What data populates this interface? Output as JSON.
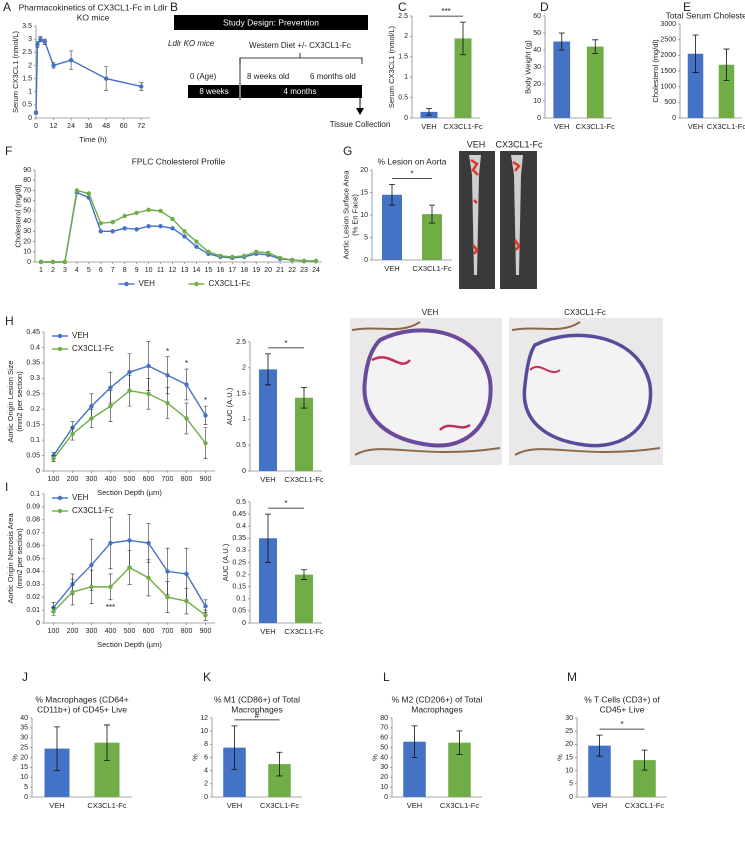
{
  "chart_data": [
    {
      "panel": "A",
      "type": "line",
      "title": [
        "Pharmacokinetics of CX3CL1-Fc in Ldlr",
        "KO mice"
      ],
      "xlabel": "Time (h)",
      "ylabel": "Serum CX3CL1 (nmol/L)",
      "x": [
        0,
        1,
        3,
        6,
        12,
        24,
        48,
        72
      ],
      "xlim": [
        0,
        78
      ],
      "xticks": [
        0,
        12,
        24,
        36,
        48,
        60,
        72
      ],
      "ylim": [
        0,
        3.5
      ],
      "yticks": [
        0,
        0.5,
        1,
        1.5,
        2,
        2.5,
        3,
        3.5
      ],
      "series": [
        {
          "name": null,
          "color": "#4472c4",
          "values": [
            0.2,
            2.8,
            3.0,
            2.9,
            2.0,
            2.2,
            1.5,
            1.2
          ],
          "errors": [
            0.05,
            0.1,
            0.1,
            0.1,
            0.1,
            0.35,
            0.45,
            0.15
          ]
        }
      ]
    },
    {
      "panel": "C",
      "type": "bar",
      "ylabel": "Serum CX3CL1 (nmol/L)",
      "categories": [
        "VEH",
        "CX3CL1-Fc"
      ],
      "colors": [
        "#4472c4",
        "#70ad47"
      ],
      "values": [
        0.15,
        1.95
      ],
      "errors": [
        0.08,
        0.4
      ],
      "ylim": [
        0,
        2.5
      ],
      "yticks": [
        0,
        0.5,
        1,
        1.5,
        2,
        2.5
      ],
      "significance": "***"
    },
    {
      "panel": "D",
      "type": "bar",
      "ylabel": "Body Weight (g)",
      "categories": [
        "VEH",
        "CX3CL1-Fc"
      ],
      "colors": [
        "#4472c4",
        "#70ad47"
      ],
      "values": [
        45,
        42
      ],
      "errors": [
        5,
        4
      ],
      "ylim": [
        0,
        60
      ],
      "yticks": [
        0,
        10,
        20,
        30,
        40,
        50,
        60
      ]
    },
    {
      "panel": "E",
      "type": "bar",
      "title": [
        "Total Serum Cholesterol"
      ],
      "ylabel": "Cholesterol (mg/dl)",
      "categories": [
        "VEH",
        "CX3CL1-Fc"
      ],
      "colors": [
        "#4472c4",
        "#70ad47"
      ],
      "values": [
        2050,
        1700
      ],
      "errors": [
        600,
        500
      ],
      "ylim": [
        0,
        3000
      ],
      "yticks": [
        0,
        500,
        1000,
        1500,
        2000,
        2500,
        3000
      ]
    },
    {
      "panel": "F",
      "type": "line",
      "title": [
        "FPLC Cholesterol Profile"
      ],
      "ylabel": "Cholesterol (mg/dl)",
      "x": [
        1,
        2,
        3,
        4,
        5,
        6,
        7,
        8,
        9,
        10,
        11,
        12,
        13,
        14,
        15,
        16,
        17,
        18,
        19,
        20,
        21,
        22,
        23,
        24
      ],
      "xlim": [
        0.5,
        24.5
      ],
      "xticks": [
        1,
        2,
        3,
        4,
        5,
        6,
        7,
        8,
        9,
        10,
        11,
        12,
        13,
        14,
        15,
        16,
        17,
        18,
        19,
        20,
        21,
        22,
        23,
        24
      ],
      "ylim": [
        0,
        90
      ],
      "yticks": [
        0,
        10,
        20,
        30,
        40,
        50,
        60,
        70,
        80,
        90
      ],
      "legend": "bottom",
      "series": [
        {
          "name": "VEH",
          "color": "#4472c4",
          "values": [
            0,
            0,
            0,
            68,
            63,
            30,
            30,
            33,
            32,
            35,
            35,
            33,
            25,
            15,
            8,
            5,
            4,
            5,
            8,
            7,
            3,
            2,
            1,
            1
          ]
        },
        {
          "name": "CX3CL1-Fc",
          "color": "#70ad47",
          "values": [
            0,
            0,
            0,
            70,
            67,
            38,
            39,
            45,
            48,
            51,
            50,
            42,
            30,
            20,
            10,
            6,
            5,
            6,
            10,
            9,
            4,
            2,
            1,
            1
          ]
        }
      ]
    },
    {
      "panel": "G",
      "type": "bar",
      "title": [
        "% Lesion on Aorta"
      ],
      "ylabel": [
        "Aortic Lesion Surface Area",
        "(% En Face)"
      ],
      "categories": [
        "VEH",
        "CX3CL1-Fc"
      ],
      "colors": [
        "#4472c4",
        "#70ad47"
      ],
      "values": [
        14.5,
        10.2
      ],
      "errors": [
        2.3,
        2
      ],
      "ylim": [
        0,
        20
      ],
      "yticks": [
        0,
        5,
        10,
        15,
        20
      ],
      "significance": "*"
    },
    {
      "panel": "H",
      "type": "line",
      "xlabel": "Section Depth (µm)",
      "ylabel": [
        "Aortic Origin Lesion Size",
        "(mm2 per section)"
      ],
      "x": [
        100,
        200,
        300,
        400,
        500,
        600,
        700,
        800,
        900
      ],
      "xlim": [
        50,
        950
      ],
      "xticks": [
        100,
        200,
        300,
        400,
        500,
        600,
        700,
        800,
        900
      ],
      "ylim": [
        0,
        0.45
      ],
      "yticks": [
        0,
        0.05,
        0.1,
        0.15,
        0.2,
        0.25,
        0.3,
        0.35,
        0.4,
        0.45
      ],
      "legend": "top-left",
      "annotations": [
        {
          "text": "*",
          "x": 700
        },
        {
          "text": "*",
          "x": 800
        },
        {
          "text": "*",
          "x": 900
        }
      ],
      "series": [
        {
          "name": "VEH",
          "color": "#4472c4",
          "values": [
            0.05,
            0.14,
            0.21,
            0.27,
            0.32,
            0.34,
            0.31,
            0.28,
            0.18
          ],
          "errors": [
            0.01,
            0.02,
            0.04,
            0.05,
            0.06,
            0.08,
            0.06,
            0.05,
            0.03
          ]
        },
        {
          "name": "CX3CL1-Fc",
          "color": "#70ad47",
          "values": [
            0.04,
            0.12,
            0.17,
            0.21,
            0.26,
            0.25,
            0.22,
            0.17,
            0.09
          ],
          "errors": [
            0.01,
            0.02,
            0.03,
            0.05,
            0.05,
            0.05,
            0.05,
            0.05,
            0.05
          ]
        }
      ]
    },
    {
      "type": "bar",
      "ylabel": "AUC (A.U.)",
      "categories": [
        "VEH",
        "CX3CL1-Fc"
      ],
      "colors": [
        "#4472c4",
        "#70ad47"
      ],
      "values": [
        1.97,
        1.42
      ],
      "errors": [
        0.3,
        0.2
      ],
      "ylim": [
        0,
        2.5
      ],
      "yticks": [
        0,
        0.5,
        1,
        1.5,
        2,
        2.5
      ],
      "significance": "*"
    },
    {
      "panel": "I",
      "type": "line",
      "xlabel": "Section Depth (µm)",
      "ylabel": [
        "Aortic Origin Necrosis Area",
        "(mm2 per section)"
      ],
      "x": [
        100,
        200,
        300,
        400,
        500,
        600,
        700,
        800,
        900
      ],
      "xlim": [
        50,
        950
      ],
      "xticks": [
        100,
        200,
        300,
        400,
        500,
        600,
        700,
        800,
        900
      ],
      "ylim": [
        0,
        0.1
      ],
      "yticks": [
        0,
        0.01,
        0.02,
        0.03,
        0.04,
        0.05,
        0.06,
        0.07,
        0.08,
        0.09,
        0.1
      ],
      "legend": "top-left",
      "annotations": [
        {
          "text": "***",
          "x": 400,
          "side": "below"
        }
      ],
      "series": [
        {
          "name": "VEH",
          "color": "#4472c4",
          "values": [
            0.012,
            0.03,
            0.045,
            0.062,
            0.064,
            0.062,
            0.04,
            0.038,
            0.013
          ],
          "errors": [
            0.004,
            0.008,
            0.02,
            0.02,
            0.02,
            0.015,
            0.018,
            0.02,
            0.005
          ]
        },
        {
          "name": "CX3CL1-Fc",
          "color": "#70ad47",
          "values": [
            0.009,
            0.024,
            0.028,
            0.028,
            0.043,
            0.035,
            0.02,
            0.017,
            0.006
          ],
          "errors": [
            0.003,
            0.01,
            0.013,
            0.01,
            0.013,
            0.014,
            0.012,
            0.01,
            0.004
          ]
        }
      ]
    },
    {
      "type": "bar",
      "ylabel": "AUC (A.U.)",
      "categories": [
        "VEH",
        "CX3CL1-Fc"
      ],
      "colors": [
        "#4472c4",
        "#70ad47"
      ],
      "values": [
        0.35,
        0.2
      ],
      "errors": [
        0.1,
        0.02
      ],
      "ylim": [
        0,
        0.5
      ],
      "yticks": [
        0,
        0.05,
        0.1,
        0.15,
        0.2,
        0.25,
        0.3,
        0.35,
        0.4,
        0.45,
        0.5
      ],
      "significance": "*"
    },
    {
      "panel": "J",
      "type": "bar",
      "title": [
        "% Macrophages (CD64+",
        "CD11b+) of CD45+ Live"
      ],
      "ylabel": "%",
      "categories": [
        "VEH",
        "CX3CL1-Fc"
      ],
      "colors": [
        "#4472c4",
        "#70ad47"
      ],
      "values": [
        24.5,
        27.5
      ],
      "errors": [
        11,
        9
      ],
      "ylim": [
        0,
        40
      ],
      "yticks": [
        0,
        5,
        10,
        15,
        20,
        25,
        30,
        35,
        40
      ]
    },
    {
      "panel": "K",
      "type": "bar",
      "title": [
        "% M1 (CD86+) of Total",
        "Macrophages"
      ],
      "ylabel": "%",
      "categories": [
        "VEH",
        "CX3CL1-Fc"
      ],
      "colors": [
        "#4472c4",
        "#70ad47"
      ],
      "values": [
        7.5,
        5
      ],
      "errors": [
        3.3,
        1.8
      ],
      "ylim": [
        0,
        12
      ],
      "yticks": [
        0,
        2,
        4,
        6,
        8,
        10,
        12
      ],
      "significance": "#"
    },
    {
      "panel": "L",
      "type": "bar",
      "title": [
        "% M2 (CD206+) of Total",
        "Macrophages"
      ],
      "ylabel": "%",
      "categories": [
        "VEH",
        "CX3CL1-Fc"
      ],
      "colors": [
        "#4472c4",
        "#70ad47"
      ],
      "values": [
        56,
        55
      ],
      "errors": [
        16,
        12
      ],
      "ylim": [
        0,
        80
      ],
      "yticks": [
        0,
        10,
        20,
        30,
        40,
        50,
        60,
        70,
        80
      ]
    },
    {
      "panel": "M",
      "type": "bar",
      "title": [
        "% T Cells (CD3+) of",
        "CD45+ Live"
      ],
      "ylabel": "%",
      "categories": [
        "VEH",
        "CX3CL1-Fc"
      ],
      "colors": [
        "#4472c4",
        "#70ad47"
      ],
      "values": [
        19.5,
        14
      ],
      "errors": [
        4,
        3.8
      ],
      "ylim": [
        0,
        30
      ],
      "yticks": [
        0,
        5,
        10,
        15,
        20,
        25,
        30
      ],
      "significance": "*"
    }
  ],
  "study_design": {
    "panel": "B",
    "title": "Study Design: Prevention",
    "model": "Ldlr KO mice",
    "treatment": "Western Diet +/- CX3CL1-Fc",
    "ages": [
      "0 (Age)",
      "8 weeks old",
      "6 months old"
    ],
    "periods": [
      "8 weeks",
      "4 months"
    ],
    "endpoint": "Tissue Collection"
  },
  "images": {
    "en_face": [
      "VEH",
      "CX3CL1-Fc"
    ],
    "histology": [
      "VEH",
      "CX3CL1-Fc"
    ]
  }
}
